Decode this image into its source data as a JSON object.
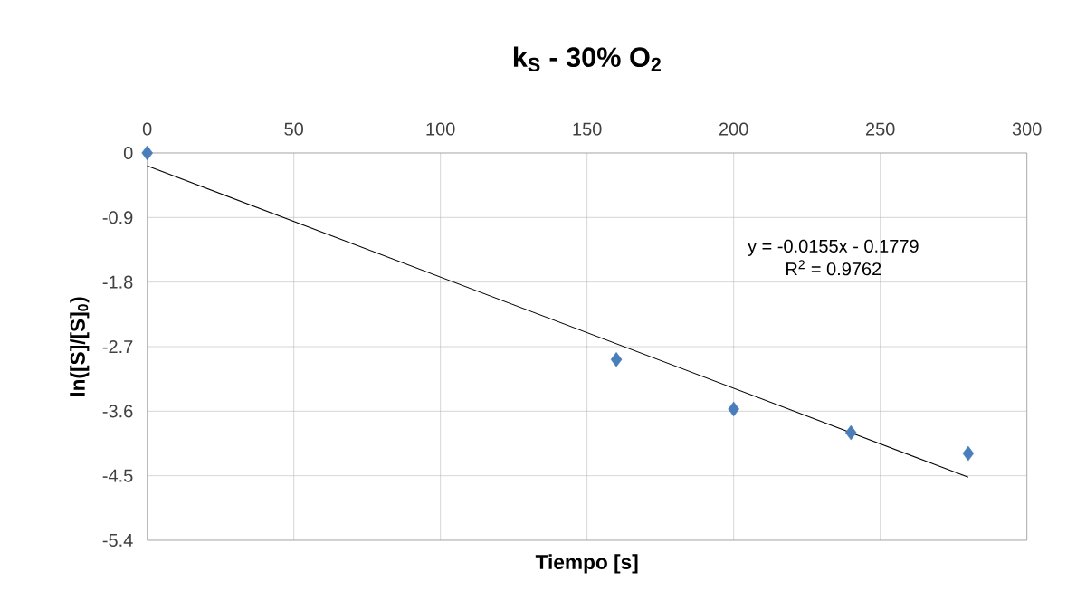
{
  "chart_data": {
    "type": "scatter",
    "title": "k$_{S}$ - 30% O$_{2}$",
    "xlabel": "Tiempo [s]",
    "ylabel": "ln([S]/[S]$_{0}$)",
    "x": [
      0,
      160,
      200,
      240,
      280
    ],
    "series": [
      {
        "type": "scatter",
        "color": "#4a7ebb",
        "marker": "diamond",
        "values": [
          0,
          -2.88,
          -3.57,
          -3.9,
          -4.19
        ]
      },
      {
        "type": "line",
        "color": "#000000",
        "marker": "none",
        "x": [
          0,
          280
        ],
        "values": [
          -0.18,
          -4.52
        ]
      }
    ],
    "annotations": [
      "y = -0.0155x - 0.1779",
      "R$^{2}$ = 0.9762"
    ],
    "xlim": [
      0,
      300
    ],
    "xticks": [
      0,
      50,
      100,
      150,
      200,
      250,
      300
    ],
    "ylim": [
      -5.4,
      0
    ],
    "yticks": [
      0,
      -0.9,
      -1.8,
      -2.7,
      -3.6,
      -4.5,
      -5.4
    ],
    "grid": true
  }
}
